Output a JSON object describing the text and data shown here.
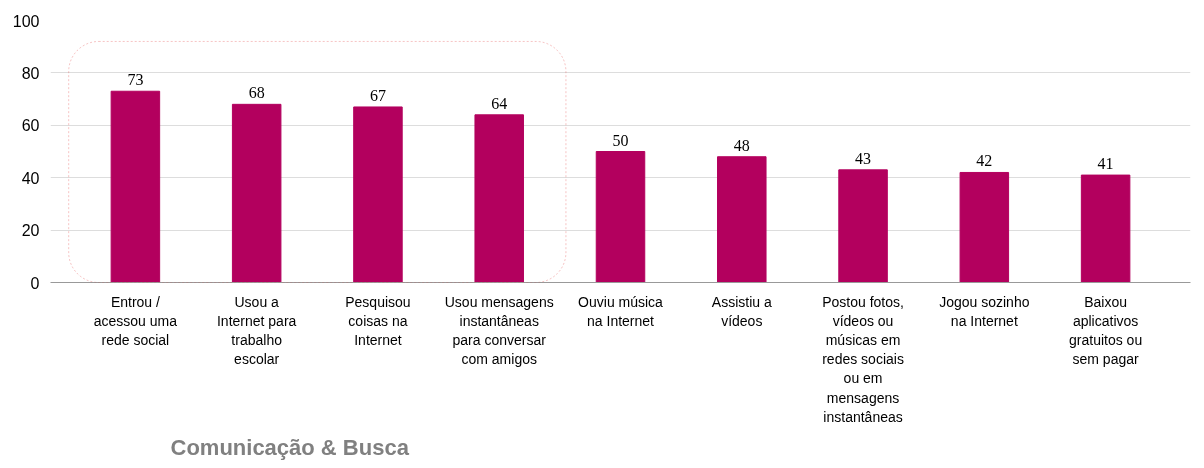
{
  "chart_data": {
    "type": "bar",
    "categories": [
      "Entrou / acessou uma rede social",
      "Usou a Internet para trabalho escolar",
      "Pesquisou coisas na Internet",
      "Usou mensagens instantâneas para conversar com amigos",
      "Ouviu música na Internet",
      "Assistiu a vídeos",
      "Postou fotos, vídeos ou músicas em redes sociais ou em mensagens instantâneas",
      "Jogou sozinho na Internet",
      "Baixou aplicativos gratuitos ou sem pagar"
    ],
    "values": [
      73,
      68,
      67,
      64,
      50,
      48,
      43,
      42,
      41
    ],
    "color": "#b3005e",
    "ylim": [
      0,
      100
    ],
    "yticks": [
      0,
      20,
      40,
      60,
      80,
      100
    ],
    "grid": "y",
    "data_labels": true,
    "annotations": [
      "Comunicação & Busca"
    ]
  }
}
